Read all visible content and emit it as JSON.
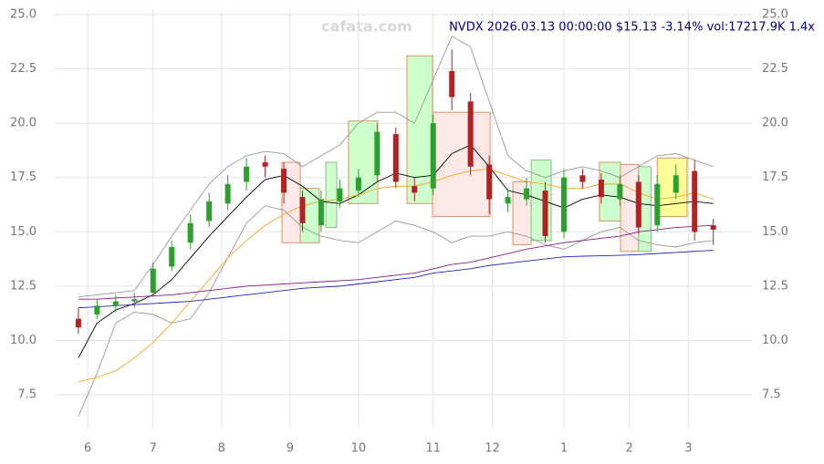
{
  "chart_data": {
    "type": "candlestick",
    "title": "NVDX 2026.03.13 00:00:00 $15.13 -3.14% vol:17217.9K 1.4x",
    "watermark": "cafata.com",
    "x": [
      0,
      6,
      12,
      18,
      24,
      30,
      36,
      42,
      48,
      54,
      60,
      66,
      72,
      78,
      84,
      90,
      96,
      102,
      108,
      114,
      120,
      126,
      132,
      138,
      144,
      150,
      156,
      162,
      168,
      174,
      180,
      186,
      192,
      198,
      204
    ],
    "open": [
      11.0,
      11.2,
      11.6,
      11.8,
      12.2,
      13.4,
      14.5,
      15.5,
      16.3,
      17.3,
      18.2,
      17.9,
      16.6,
      15.3,
      16.4,
      16.9,
      17.6,
      19.5,
      17.1,
      17.0,
      22.4,
      21.0,
      18.1,
      16.3,
      16.5,
      16.9,
      15.0,
      17.6,
      17.4,
      16.5,
      17.3,
      15.3,
      16.8,
      17.8,
      15.3
    ],
    "high": [
      11.5,
      11.9,
      12.1,
      12.2,
      13.6,
      14.6,
      15.8,
      16.8,
      17.6,
      18.4,
      18.5,
      18.2,
      16.9,
      16.9,
      17.4,
      17.9,
      20.0,
      19.8,
      17.5,
      20.4,
      23.4,
      21.4,
      18.5,
      17.0,
      17.5,
      17.3,
      17.9,
      17.9,
      17.7,
      17.6,
      17.6,
      17.6,
      18.1,
      18.3,
      15.6
    ],
    "low": [
      10.3,
      11.0,
      11.3,
      11.5,
      12.0,
      13.2,
      14.2,
      15.2,
      16.0,
      16.9,
      17.5,
      16.3,
      15.0,
      15.0,
      16.1,
      16.6,
      17.3,
      17.0,
      16.4,
      16.7,
      20.6,
      17.6,
      15.8,
      15.9,
      16.2,
      14.5,
      14.7,
      17.0,
      16.3,
      16.2,
      14.9,
      15.0,
      16.5,
      14.6,
      14.4
    ],
    "close": [
      10.6,
      11.6,
      11.8,
      11.9,
      13.3,
      14.3,
      15.4,
      16.4,
      17.2,
      18.0,
      18.0,
      16.8,
      15.4,
      16.5,
      17.0,
      17.5,
      19.6,
      17.3,
      16.8,
      20.0,
      21.2,
      18.0,
      16.5,
      16.6,
      17.0,
      14.8,
      17.5,
      17.3,
      16.6,
      17.2,
      15.2,
      17.2,
      17.6,
      15.0,
      15.1
    ],
    "up_color": "#2ca02c",
    "down_color": "#b22222",
    "lines": [
      {
        "color": "#999999",
        "values": [
          12.0,
          12.1,
          12.2,
          12.3,
          13.5,
          14.8,
          16.0,
          17.2,
          18.0,
          18.5,
          18.7,
          18.6,
          18.0,
          18.5,
          19.0,
          20.0,
          20.5,
          20.5,
          20.0,
          22.0,
          24.0,
          23.5,
          21.0,
          18.5,
          17.8,
          17.5,
          17.8,
          18.0,
          17.8,
          17.5,
          18.0,
          18.5,
          18.6,
          18.3,
          18.0
        ]
      },
      {
        "color": "#999999",
        "values": [
          6.5,
          8.5,
          10.8,
          11.3,
          11.2,
          10.8,
          11.0,
          12.2,
          13.8,
          15.4,
          16.2,
          16.0,
          15.2,
          14.8,
          14.6,
          14.5,
          15.0,
          15.5,
          15.3,
          15.0,
          14.5,
          14.8,
          14.8,
          15.0,
          14.8,
          14.4,
          14.2,
          14.6,
          15.0,
          15.2,
          14.6,
          14.4,
          14.3,
          14.5,
          14.6
        ]
      },
      {
        "color": "#000000",
        "values": [
          9.2,
          10.8,
          11.4,
          11.7,
          12.1,
          12.8,
          13.8,
          14.8,
          15.7,
          16.6,
          17.4,
          17.6,
          17.1,
          16.4,
          16.3,
          16.7,
          17.3,
          17.7,
          17.5,
          17.6,
          18.6,
          19.0,
          18.0,
          16.9,
          16.7,
          16.4,
          16.1,
          16.5,
          16.7,
          16.6,
          16.3,
          16.2,
          16.3,
          16.4,
          16.3
        ]
      },
      {
        "color": "#f5a623",
        "values": [
          8.1,
          8.3,
          8.6,
          9.2,
          9.9,
          10.8,
          11.8,
          12.8,
          13.8,
          14.6,
          15.3,
          15.8,
          16.2,
          16.4,
          16.5,
          16.7,
          17.0,
          17.1,
          17.1,
          17.3,
          17.6,
          17.8,
          17.9,
          17.6,
          17.3,
          17.2,
          17.0,
          17.0,
          17.2,
          17.2,
          16.8,
          16.5,
          16.6,
          16.8,
          16.5
        ]
      },
      {
        "color": "#2222cc",
        "values": [
          11.5,
          11.55,
          11.6,
          11.65,
          11.7,
          11.75,
          11.8,
          11.9,
          12.0,
          12.1,
          12.2,
          12.3,
          12.4,
          12.45,
          12.5,
          12.6,
          12.7,
          12.8,
          12.9,
          13.1,
          13.2,
          13.3,
          13.45,
          13.55,
          13.65,
          13.75,
          13.85,
          13.88,
          13.9,
          13.92,
          13.95,
          14.0,
          14.05,
          14.1,
          14.15
        ]
      },
      {
        "color": "#8b1a8b",
        "values": [
          11.9,
          11.9,
          11.95,
          12.0,
          12.05,
          12.1,
          12.2,
          12.3,
          12.4,
          12.5,
          12.55,
          12.6,
          12.65,
          12.7,
          12.75,
          12.8,
          12.9,
          13.0,
          13.1,
          13.3,
          13.5,
          13.6,
          13.8,
          14.0,
          14.2,
          14.35,
          14.5,
          14.6,
          14.7,
          14.8,
          15.0,
          15.1,
          15.2,
          15.25,
          15.3
        ]
      }
    ],
    "zones": [
      {
        "x": [
          65.4,
          71.3
        ],
        "y": [
          14.5,
          18.2
        ],
        "color": "#fde8e8",
        "edge": "#e09060"
      },
      {
        "x": [
          71.3,
          77.4
        ],
        "y": [
          14.5,
          17.0
        ],
        "color": "#ccffcc",
        "edge": "#e09060"
      },
      {
        "x": [
          79.5,
          83
        ],
        "y": [
          15.2,
          18.2
        ],
        "color": "#ccffcc",
        "edge": "#88bb88"
      },
      {
        "x": [
          86.8,
          96.2
        ],
        "y": [
          16.3,
          20.1
        ],
        "color": "#ccffcc",
        "edge": "#e09060"
      },
      {
        "x": [
          105.6,
          113.8
        ],
        "y": [
          16.3,
          23.1
        ],
        "color": "#ccffcc",
        "edge": "#e09060"
      },
      {
        "x": [
          113.8,
          132.3
        ],
        "y": [
          15.7,
          20.5
        ],
        "color": "#fde8e8",
        "edge": "#e09060"
      },
      {
        "x": [
          139.6,
          145.5
        ],
        "y": [
          14.4,
          17.3
        ],
        "color": "#fde8e8",
        "edge": "#e09060"
      },
      {
        "x": [
          145.5,
          151.9
        ],
        "y": [
          14.6,
          18.3
        ],
        "color": "#ccffcc",
        "edge": "#88bb88"
      },
      {
        "x": [
          167.4,
          174.2
        ],
        "y": [
          15.5,
          18.2
        ],
        "color": "#ccffcc",
        "edge": "#e09060"
      },
      {
        "x": [
          174.2,
          180
        ],
        "y": [
          14.1,
          18.1
        ],
        "color": "#fde8e8",
        "edge": "#e09060"
      },
      {
        "x": [
          180,
          184
        ],
        "y": [
          14.1,
          18.0
        ],
        "color": "#ccffcc",
        "edge": "#88bb88"
      },
      {
        "x": [
          186,
          195.6
        ],
        "y": [
          15.7,
          18.4
        ],
        "color": "#ffff99",
        "edge": "#e09060"
      }
    ],
    "xlim": [
      -7.6,
      216.7
    ],
    "ylim": [
      5.95,
      25.25
    ],
    "xticks": [
      {
        "value": 3,
        "label": "6"
      },
      {
        "value": 24,
        "label": "7"
      },
      {
        "value": 46,
        "label": "8"
      },
      {
        "value": 68,
        "label": "9"
      },
      {
        "value": 90,
        "label": "10"
      },
      {
        "value": 114,
        "label": "11"
      },
      {
        "value": 133,
        "label": "12"
      },
      {
        "value": 156,
        "label": "1"
      },
      {
        "value": 177,
        "label": "2"
      },
      {
        "value": 196,
        "label": "3"
      }
    ],
    "yticks": [
      7.5,
      {
        "value": 10,
        "label": "10.0"
      },
      12.5,
      {
        "value": 15,
        "label": "15.0"
      },
      17.5,
      {
        "value": 20,
        "label": "20.0"
      },
      22.5,
      {
        "value": 25,
        "label": "25.0"
      }
    ],
    "grid": true
  }
}
